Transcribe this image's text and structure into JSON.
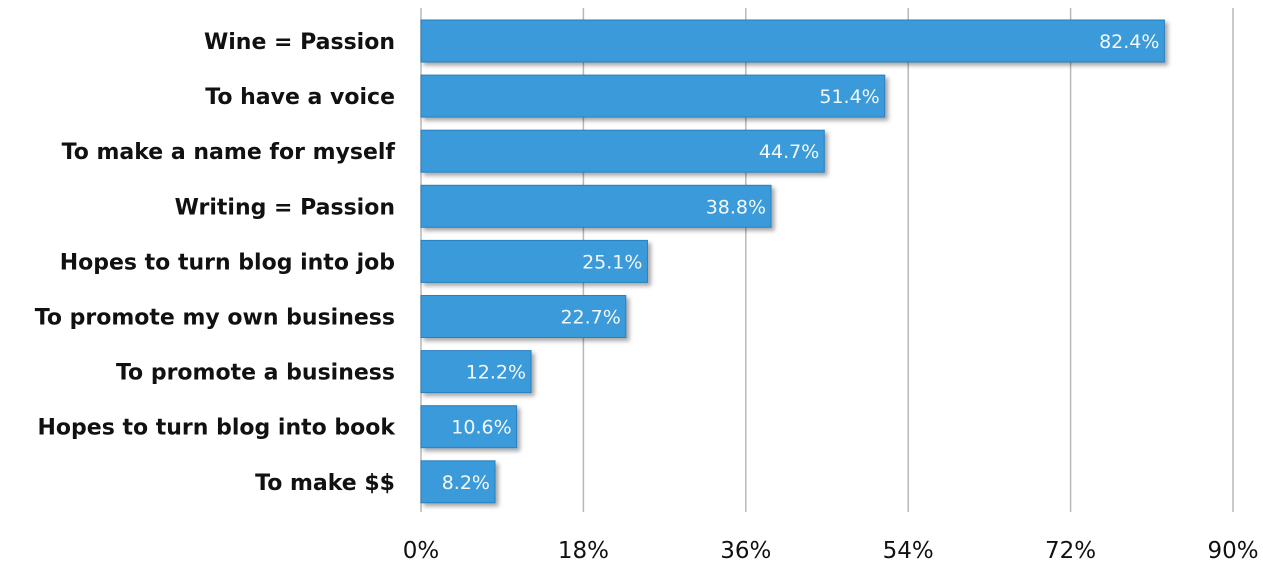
{
  "colors": {
    "bar": "#3a9ad9",
    "bar_edge": "#2a7fbd",
    "grid": "#b8b8b8",
    "value_text": "#f2f8fc",
    "label_text": "#111111"
  },
  "chart_data": {
    "type": "bar",
    "orientation": "horizontal",
    "title": "",
    "xlabel": "",
    "ylabel": "",
    "categories": [
      "Wine = Passion",
      "To have a voice",
      "To make a name for myself",
      "Writing = Passion",
      "Hopes to turn blog into job",
      "To promote my own business",
      "To promote a business",
      "Hopes to turn blog into book",
      "To make $$"
    ],
    "values": [
      82.4,
      51.4,
      44.7,
      38.8,
      25.1,
      22.7,
      12.2,
      10.6,
      8.2
    ],
    "value_labels": [
      "82.4%",
      "51.4%",
      "44.7%",
      "38.8%",
      "25.1%",
      "22.7%",
      "12.2%",
      "10.6%",
      "8.2%"
    ],
    "xlim": [
      0,
      90
    ],
    "xticks": [
      0,
      18,
      36,
      54,
      72,
      90
    ],
    "xtick_labels": [
      "0%",
      "18%",
      "36%",
      "54%",
      "72%",
      "90%"
    ],
    "grid": "vertical",
    "legend": "none"
  }
}
